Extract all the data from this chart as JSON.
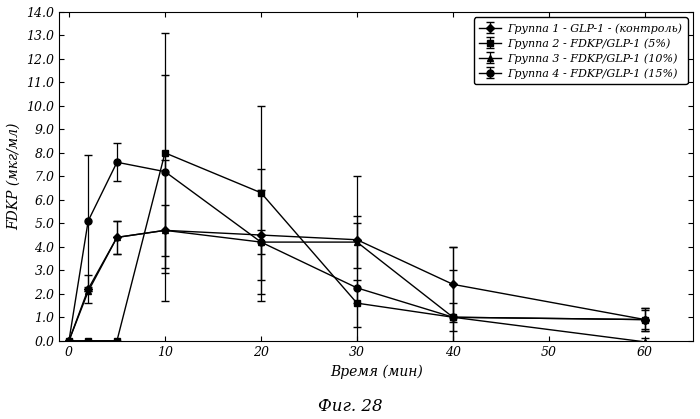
{
  "title": "Фиг. 28",
  "xlabel": "Время (мин)",
  "ylabel": "FDKP (мкг/мл)",
  "xlim": [
    -1,
    65
  ],
  "ylim": [
    0,
    14.0
  ],
  "yticks": [
    0.0,
    1.0,
    2.0,
    3.0,
    4.0,
    5.0,
    6.0,
    7.0,
    8.0,
    9.0,
    10.0,
    11.0,
    12.0,
    13.0,
    14.0
  ],
  "ytick_labels": [
    "0.0",
    "1.0",
    "2.0",
    "3.0",
    "4.0",
    "5.0",
    "6.0",
    "7.0",
    "8.0",
    "9.0",
    "10.0",
    "11.0",
    "12.0",
    "13.0",
    "14.0"
  ],
  "xticks": [
    0,
    10,
    20,
    30,
    40,
    50,
    60
  ],
  "groups": [
    {
      "label": "Группа 1 - GLP-1 - (контроль)",
      "x": [
        0,
        2,
        5,
        10,
        20,
        30,
        40,
        60
      ],
      "y": [
        0.0,
        2.2,
        4.4,
        4.7,
        4.5,
        4.3,
        2.4,
        0.9
      ],
      "yerr": [
        0.0,
        0.6,
        0.7,
        1.1,
        2.8,
        2.7,
        1.6,
        0.5
      ],
      "marker": "D",
      "markersize": 4,
      "color": "#000000",
      "linestyle": "-"
    },
    {
      "label": "Группа 2 - FDKP/GLP-1 (5%)",
      "x": [
        0,
        2,
        5,
        10,
        20,
        30,
        40,
        60
      ],
      "y": [
        0.0,
        0.0,
        0.0,
        8.0,
        6.3,
        1.6,
        1.0,
        0.9
      ],
      "yerr": [
        0.0,
        0.0,
        0.0,
        5.1,
        3.7,
        1.0,
        0.6,
        0.4
      ],
      "marker": "s",
      "markersize": 5,
      "color": "#000000",
      "linestyle": "-"
    },
    {
      "label": "Группа 3 - FDKP/GLP-1 (10%)",
      "x": [
        0,
        2,
        5,
        10,
        20,
        30,
        40,
        60
      ],
      "y": [
        0.0,
        2.1,
        4.4,
        4.7,
        4.2,
        4.2,
        1.0,
        -0.05
      ],
      "yerr": [
        0.0,
        0.0,
        0.7,
        3.0,
        2.2,
        1.1,
        2.0,
        0.15
      ],
      "marker": "^",
      "markersize": 5,
      "color": "#000000",
      "linestyle": "-"
    },
    {
      "label": "Группа 4 - FDKP/GLP-1 (15%)",
      "x": [
        0,
        2,
        5,
        10,
        20,
        30,
        40,
        60
      ],
      "y": [
        0.0,
        5.1,
        7.6,
        7.2,
        4.2,
        2.25,
        1.0,
        0.9
      ],
      "yerr": [
        0.0,
        2.8,
        0.8,
        4.1,
        0.5,
        2.75,
        3.0,
        0.5
      ],
      "marker": "o",
      "markersize": 5,
      "color": "#000000",
      "linestyle": "-"
    }
  ],
  "background_color": "#ffffff",
  "legend_fontsize": 8,
  "axis_fontsize": 10,
  "tick_fontsize": 9,
  "title_fontsize": 12
}
